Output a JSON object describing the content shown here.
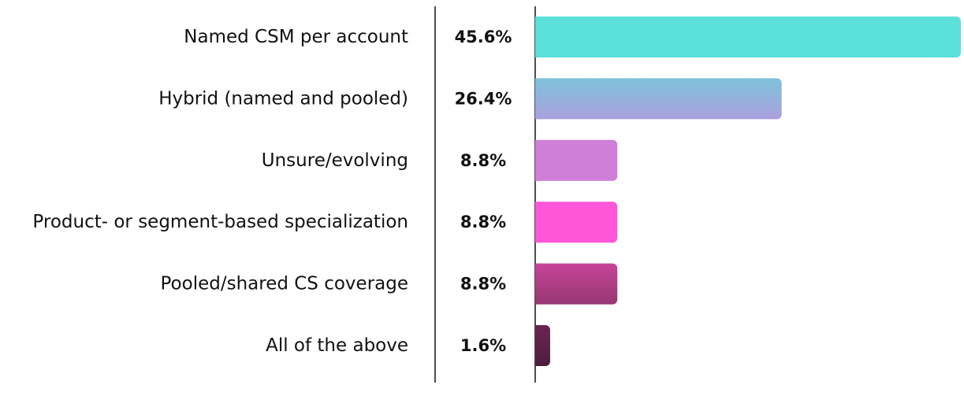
{
  "chart_data": {
    "type": "bar",
    "orientation": "horizontal",
    "title": "",
    "xlabel": "",
    "ylabel": "",
    "categories": [
      "Named CSM per account",
      "Hybrid (named and pooled)",
      "Unsure/evolving",
      "Product- or segment-based specialization",
      "Pooled/shared CS coverage",
      "All of the above"
    ],
    "values": [
      45.6,
      26.4,
      8.8,
      8.8,
      8.8,
      1.6
    ],
    "value_labels": [
      "45.6%",
      "26.4%",
      "8.8%",
      "8.8%",
      "8.8%",
      "1.6%"
    ],
    "unit": "%",
    "xlim": [
      0,
      45.6
    ],
    "grid": false,
    "legend": "none",
    "colors": [
      [
        "#5be0da",
        "#5be0da"
      ],
      [
        "#7ec3dc",
        "#aaa0dc"
      ],
      [
        "#cf7fd8",
        "#cf7fd8"
      ],
      [
        "#ff57d8",
        "#ff57d8"
      ],
      [
        "#c8449a",
        "#963872"
      ],
      [
        "#6b2451",
        "#4d1e3c"
      ]
    ]
  }
}
